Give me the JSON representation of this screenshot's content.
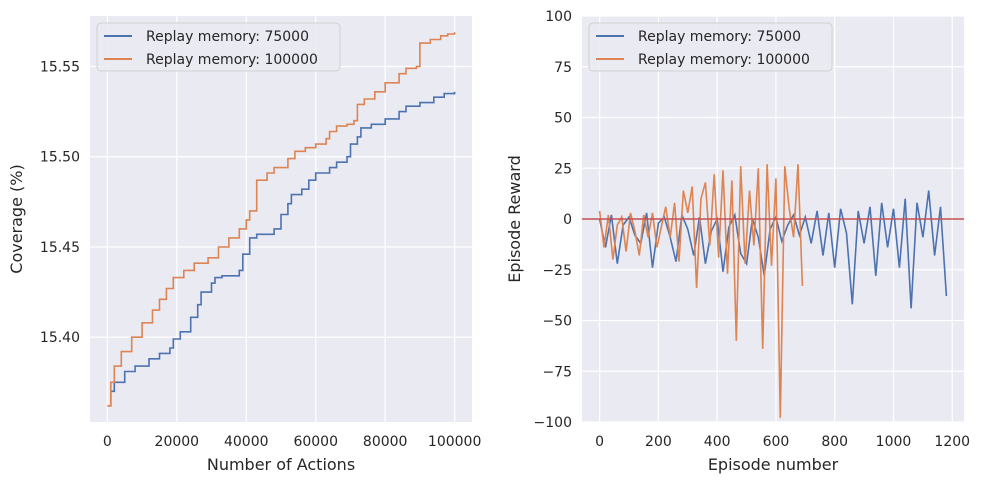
{
  "chart_data": [
    {
      "type": "line",
      "xlabel": "Number of Actions",
      "ylabel": "Coverage (%)",
      "xlim": [
        -5000,
        105000
      ],
      "ylim": [
        15.353,
        15.578
      ],
      "xticks": [
        0,
        20000,
        40000,
        60000,
        80000,
        100000
      ],
      "xtick_labels": [
        "0",
        "20000",
        "40000",
        "60000",
        "80000",
        "100000"
      ],
      "yticks": [
        15.4,
        15.45,
        15.5,
        15.55
      ],
      "ytick_labels": [
        "15.40",
        "15.45",
        "15.50",
        "15.55"
      ],
      "grid": true,
      "legend_position": "top-left",
      "series": [
        {
          "name": "Replay memory: 75000",
          "color": "#4c72b0",
          "x": [
            0,
            1000,
            2000,
            5000,
            8000,
            12000,
            15000,
            18000,
            19000,
            21000,
            24000,
            26000,
            27000,
            30000,
            31000,
            33000,
            38000,
            39000,
            41000,
            43000,
            48000,
            50000,
            52000,
            53000,
            56000,
            58000,
            60000,
            64000,
            66000,
            69000,
            70000,
            72000,
            73000,
            76000,
            80000,
            84000,
            86000,
            90000,
            94000,
            97000,
            100000
          ],
          "y": [
            15.362,
            15.37,
            15.375,
            15.381,
            15.384,
            15.388,
            15.391,
            15.394,
            15.399,
            15.403,
            15.411,
            15.418,
            15.425,
            15.43,
            15.433,
            15.434,
            15.437,
            15.446,
            15.455,
            15.457,
            15.46,
            15.468,
            15.474,
            15.479,
            15.482,
            15.487,
            15.491,
            15.494,
            15.497,
            15.5,
            15.507,
            15.511,
            15.516,
            15.518,
            15.521,
            15.525,
            15.528,
            15.53,
            15.533,
            15.535,
            15.536
          ]
        },
        {
          "name": "Replay memory: 100000",
          "color": "#dd8452",
          "x": [
            0,
            1000,
            2000,
            4000,
            7000,
            10000,
            13000,
            15000,
            17000,
            19000,
            22000,
            25000,
            29000,
            32000,
            35000,
            38000,
            40000,
            41000,
            43000,
            46000,
            48000,
            52000,
            54000,
            57000,
            60000,
            63000,
            64000,
            66000,
            69000,
            71000,
            72000,
            74000,
            77000,
            80000,
            84000,
            86000,
            89000,
            90000,
            93000,
            96000,
            98000,
            100000
          ],
          "y": [
            15.362,
            15.375,
            15.384,
            15.392,
            15.4,
            15.408,
            15.415,
            15.421,
            15.427,
            15.433,
            15.437,
            15.441,
            15.444,
            15.45,
            15.455,
            15.46,
            15.465,
            15.47,
            15.487,
            15.491,
            15.494,
            15.499,
            15.503,
            15.505,
            15.507,
            15.51,
            15.514,
            15.517,
            15.518,
            15.52,
            15.529,
            15.532,
            15.536,
            15.541,
            15.546,
            15.549,
            15.55,
            15.563,
            15.565,
            15.567,
            15.568,
            15.569
          ]
        }
      ]
    },
    {
      "type": "line",
      "xlabel": "Episode number",
      "ylabel": "Episode Reward",
      "xlim": [
        -60,
        1240
      ],
      "ylim": [
        -100,
        100
      ],
      "xticks": [
        0,
        200,
        400,
        600,
        800,
        1000,
        1200
      ],
      "xtick_labels": [
        "0",
        "200",
        "400",
        "600",
        "800",
        "1000",
        "1200"
      ],
      "yticks": [
        -100,
        -75,
        -50,
        -25,
        0,
        25,
        50,
        75,
        100
      ],
      "ytick_labels": [
        "−100",
        "−75",
        "−50",
        "−25",
        "0",
        "25",
        "50",
        "75",
        "100"
      ],
      "grid": true,
      "legend_position": "top-left",
      "reference_line": {
        "y": 0,
        "color": "#c44e52"
      },
      "series": [
        {
          "name": "Replay memory: 75000",
          "color": "#4c72b0",
          "x": [
            0,
            20,
            40,
            60,
            80,
            100,
            120,
            140,
            160,
            180,
            200,
            220,
            240,
            260,
            280,
            300,
            320,
            340,
            360,
            380,
            400,
            420,
            440,
            460,
            480,
            500,
            520,
            540,
            560,
            580,
            600,
            620,
            640,
            660,
            680,
            700,
            720,
            740,
            760,
            780,
            800,
            820,
            840,
            860,
            880,
            900,
            920,
            940,
            960,
            980,
            1000,
            1020,
            1040,
            1060,
            1080,
            1100,
            1120,
            1140,
            1160,
            1180
          ],
          "y": [
            0,
            -14,
            2,
            -22,
            -3,
            1,
            -8,
            -12,
            3,
            -24,
            -2,
            1,
            -9,
            -21,
            2,
            -5,
            -18,
            1,
            -22,
            -6,
            0,
            -26,
            -4,
            2,
            -17,
            -22,
            0,
            -9,
            -28,
            -5,
            1,
            -11,
            -3,
            2,
            -8,
            1,
            -12,
            4,
            -18,
            3,
            -24,
            5,
            -7,
            -42,
            4,
            -12,
            6,
            -28,
            8,
            -14,
            5,
            -24,
            10,
            -44,
            8,
            -9,
            14,
            -18,
            6,
            -38
          ]
        },
        {
          "name": "Replay memory: 100000",
          "color": "#dd8452",
          "x": [
            0,
            15,
            30,
            45,
            60,
            75,
            90,
            105,
            120,
            135,
            150,
            165,
            180,
            195,
            210,
            225,
            240,
            255,
            270,
            285,
            300,
            315,
            330,
            345,
            360,
            375,
            390,
            405,
            420,
            435,
            450,
            465,
            480,
            495,
            510,
            525,
            540,
            555,
            570,
            585,
            600,
            615,
            630,
            645,
            660,
            675,
            690
          ],
          "y": [
            4,
            -14,
            2,
            -20,
            -3,
            1,
            -16,
            3,
            -6,
            -18,
            2,
            -9,
            3,
            -14,
            -4,
            6,
            -9,
            8,
            -21,
            14,
            3,
            16,
            -34,
            10,
            18,
            -13,
            22,
            -19,
            24,
            -27,
            19,
            -60,
            26,
            -22,
            14,
            -13,
            25,
            -64,
            27,
            -23,
            20,
            -98,
            26,
            5,
            -9,
            27,
            -33
          ]
        }
      ]
    }
  ]
}
